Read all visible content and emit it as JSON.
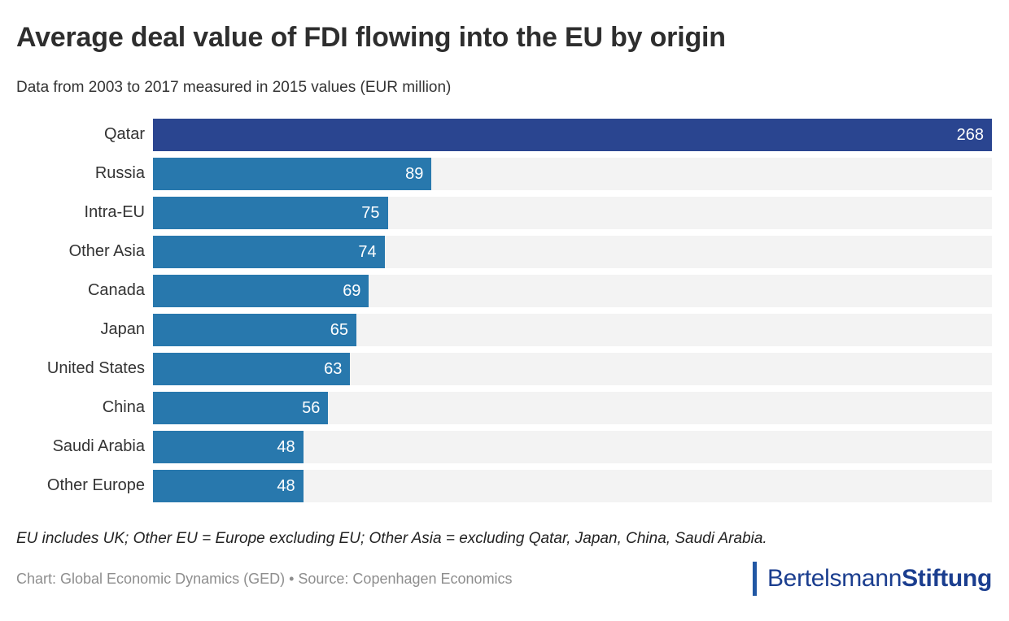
{
  "header": {
    "title": "Average deal value of FDI flowing into the EU by origin",
    "subtitle": "Data from 2003 to 2017 measured in 2015 values (EUR million)"
  },
  "chart_data": {
    "type": "bar",
    "orientation": "horizontal",
    "categories": [
      "Qatar",
      "Russia",
      "Intra-EU",
      "Other Asia",
      "Canada",
      "Japan",
      "United States",
      "China",
      "Saudi Arabia",
      "Other Europe"
    ],
    "values": [
      268,
      89,
      75,
      74,
      69,
      65,
      63,
      56,
      48,
      48
    ],
    "xlim": [
      0,
      268
    ],
    "grid": false,
    "legend": false,
    "highlight_category": "Qatar",
    "colors": {
      "bar": "#2878ad",
      "highlight_bar": "#2a4590",
      "track": "#f3f3f3",
      "value_label": "#ffffff",
      "category_label": "#333333"
    }
  },
  "footer": {
    "note": "EU includes UK; Other EU = Europe excluding EU; Other Asia = excluding Qatar, Japan, China, Saudi Arabia.",
    "credit": "Chart: Global Economic Dynamics (GED) • Source: Copenhagen Economics",
    "logo": {
      "text_regular": "Bertelsmann",
      "text_bold": "Stiftung",
      "text_color": "#1b3e8f",
      "bar_color": "#2157a4"
    }
  }
}
